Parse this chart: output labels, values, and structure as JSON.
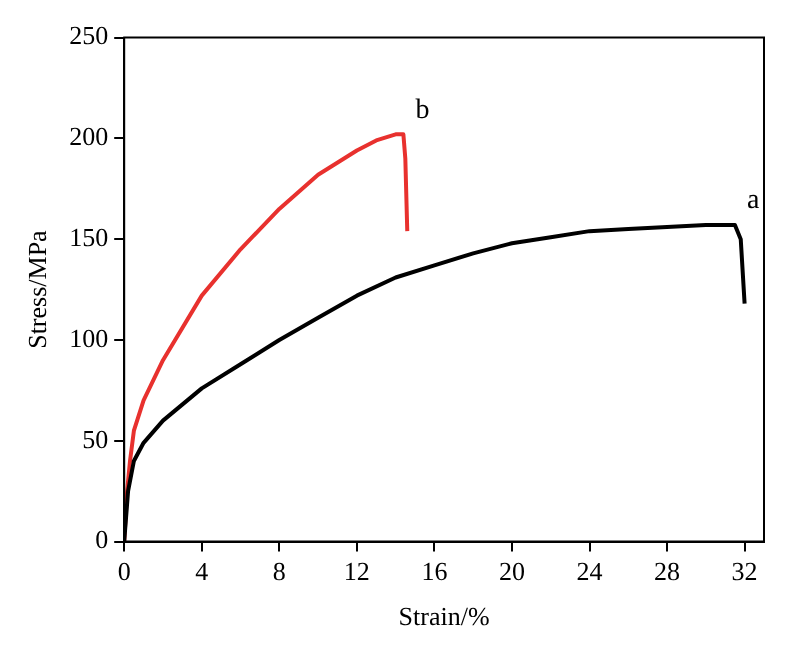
{
  "chart_data": {
    "type": "line",
    "xlabel": "Strain/%",
    "ylabel": "Stress/MPa",
    "xlim": [
      0,
      33
    ],
    "xticks": [
      0,
      4,
      8,
      12,
      16,
      20,
      24,
      28,
      32
    ],
    "ylim": [
      0,
      250
    ],
    "yticks": [
      0,
      50,
      100,
      150,
      200,
      250
    ],
    "grid": false,
    "marker": "none",
    "line_style": "solid",
    "series": [
      {
        "color": "#000000",
        "x": [
          0,
          0.2,
          0.5,
          1,
          2,
          4,
          6,
          8,
          10,
          12,
          14,
          16,
          18,
          20,
          22,
          24,
          26,
          28,
          30,
          31.5,
          31.8,
          32
        ],
        "values": [
          0,
          25,
          40,
          49,
          60,
          76,
          88,
          100,
          111,
          122,
          131,
          137,
          143,
          148,
          151,
          154,
          155,
          156,
          157,
          157,
          150,
          118
        ]
      },
      {
        "color": "#e8312e",
        "x": [
          0,
          0.15,
          0.3,
          0.5,
          1,
          2,
          4,
          6,
          8,
          10,
          12,
          13,
          14,
          14.4,
          14.5,
          14.6
        ],
        "values": [
          0,
          25,
          40,
          55,
          70,
          90,
          122,
          145,
          165,
          182,
          194,
          199,
          202,
          202,
          190,
          154
        ]
      }
    ],
    "annotations": [
      "a",
      "b"
    ]
  }
}
